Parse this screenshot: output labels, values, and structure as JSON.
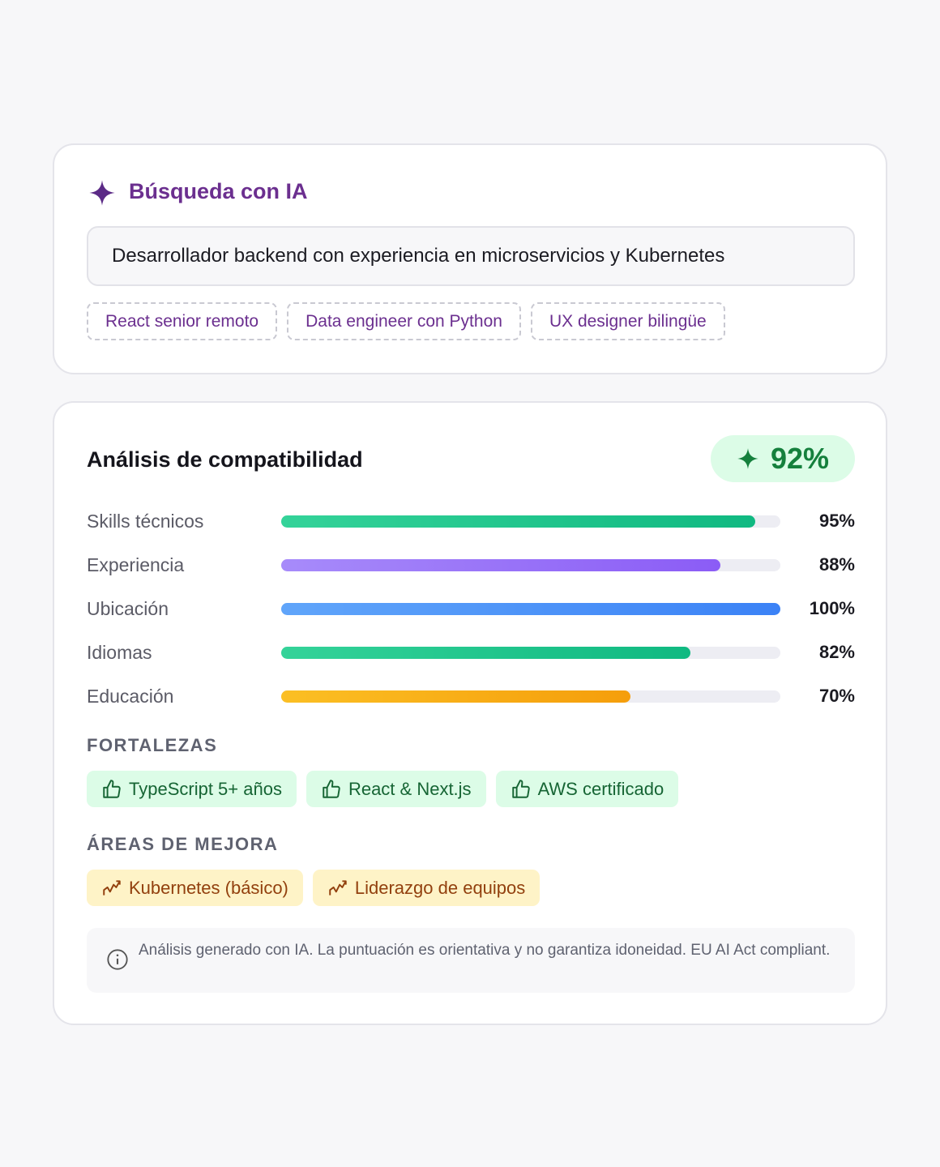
{
  "search": {
    "title": "Búsqueda con IA",
    "query": "Desarrollador backend con experiencia en microservicios y Kubernetes",
    "suggestions": [
      "React senior remoto",
      "Data engineer con Python",
      "UX designer bilingüe"
    ]
  },
  "analysis": {
    "title": "Análisis de compatibilidad",
    "score": "92%",
    "xlim": [
      0,
      100
    ],
    "criteria": [
      {
        "name": "Skills técnicos",
        "value": 95,
        "value_label": "95%",
        "colors": [
          "#34d399",
          "#10b981"
        ]
      },
      {
        "name": "Experiencia",
        "value": 88,
        "value_label": "88%",
        "colors": [
          "#a78bfa",
          "#8b5cf6"
        ]
      },
      {
        "name": "Ubicación",
        "value": 100,
        "value_label": "100%",
        "colors": [
          "#60a5fa",
          "#3b82f6"
        ]
      },
      {
        "name": "Idiomas",
        "value": 82,
        "value_label": "82%",
        "colors": [
          "#34d399",
          "#10b981"
        ]
      },
      {
        "name": "Educación",
        "value": 70,
        "value_label": "70%",
        "colors": [
          "#fbbf24",
          "#f59e0b"
        ]
      }
    ],
    "strengths": {
      "title": "FORTALEZAS",
      "items": [
        "TypeScript 5+ años",
        "React & Next.js",
        "AWS certificado"
      ]
    },
    "improvements": {
      "title": "ÁREAS DE MEJORA",
      "items": [
        "Kubernetes (básico)",
        "Liderazgo de equipos"
      ]
    },
    "note": "Análisis generado con IA. La puntuación es orientativa y no garantiza idoneidad. EU AI Act compliant."
  }
}
